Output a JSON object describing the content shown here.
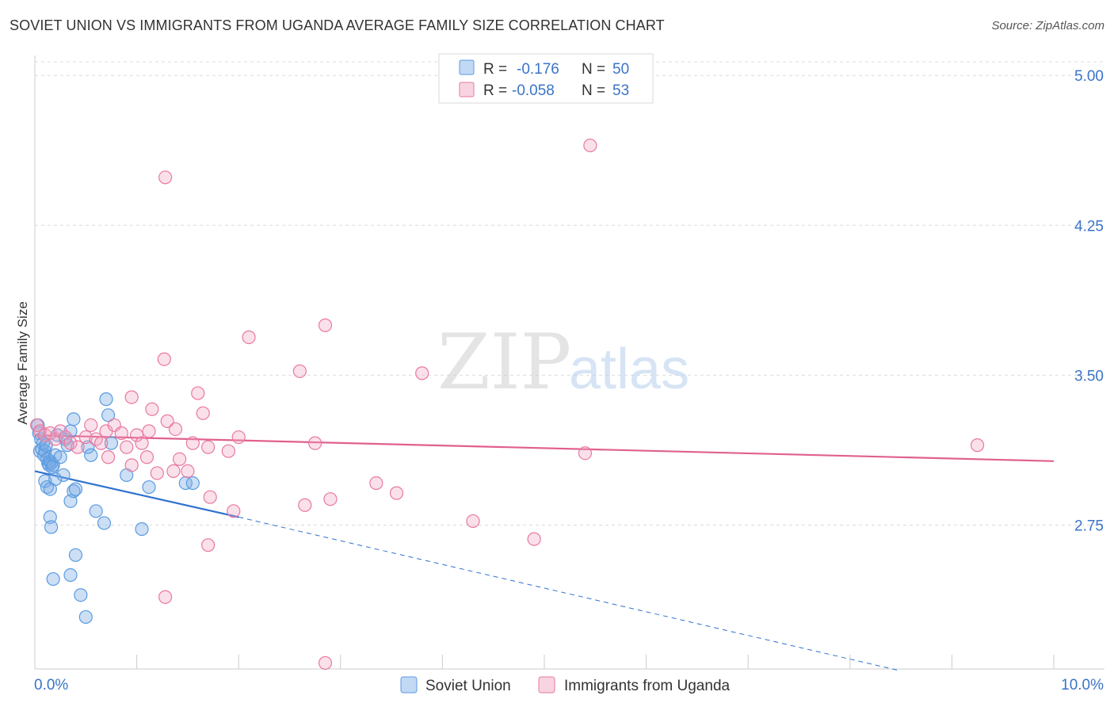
{
  "title": "SOVIET UNION VS IMMIGRANTS FROM UGANDA AVERAGE FAMILY SIZE CORRELATION CHART",
  "source": "Source: ZipAtlas.com",
  "watermark": {
    "zip": "ZIP",
    "atlas": "atlas"
  },
  "colors": {
    "blue": "#5b9be0",
    "blue_fill": "rgba(120,170,230,0.38)",
    "pink": "#e8799f",
    "pink_fill": "rgba(240,160,190,0.33)",
    "blue_line": "#2f72d0",
    "pink_line": "#e0608f",
    "tick_text": "#3a74c8",
    "grid": "#dcdcdc"
  },
  "chart_data": {
    "type": "scatter",
    "xlabel": "",
    "ylabel": "Average Family Size",
    "xlim": [
      0.0,
      10.0
    ],
    "ylim": [
      2.03,
      5.1
    ],
    "x_tick_labels": {
      "min": "0.0%",
      "max": "10.0%"
    },
    "y_ticks": [
      {
        "value": 5.0,
        "label": "5.00"
      },
      {
        "value": 4.25,
        "label": "4.25"
      },
      {
        "value": 3.5,
        "label": "3.50"
      },
      {
        "value": 2.75,
        "label": "2.75"
      }
    ],
    "grid": "horizontal dashed",
    "legend_stats": [
      {
        "r_label": "R =",
        "r_value": "-0.176",
        "n_label": "N =",
        "n_value": "50",
        "color": "blue"
      },
      {
        "r_label": "R =",
        "r_value": "-0.058",
        "n_label": "N =",
        "n_value": "53",
        "color": "pink"
      }
    ],
    "series": [
      {
        "name": "Soviet Union",
        "color": "blue",
        "trend": {
          "x": [
            0.0,
            2.0
          ],
          "y": [
            3.02,
            2.79
          ],
          "dashed_extension_to": [
            8.5,
            2.02
          ]
        },
        "points": [
          [
            0.03,
            3.25
          ],
          [
            0.04,
            3.21
          ],
          [
            0.05,
            3.12
          ],
          [
            0.06,
            3.18
          ],
          [
            0.07,
            3.13
          ],
          [
            0.08,
            3.16
          ],
          [
            0.09,
            3.1
          ],
          [
            0.1,
            3.12
          ],
          [
            0.11,
            3.15
          ],
          [
            0.12,
            3.08
          ],
          [
            0.13,
            3.06
          ],
          [
            0.14,
            3.05
          ],
          [
            0.15,
            3.07
          ],
          [
            0.16,
            3.06
          ],
          [
            0.17,
            3.04
          ],
          [
            0.18,
            3.05
          ],
          [
            0.2,
            3.1
          ],
          [
            0.22,
            3.2
          ],
          [
            0.25,
            3.09
          ],
          [
            0.28,
            3.0
          ],
          [
            0.3,
            3.18
          ],
          [
            0.32,
            3.15
          ],
          [
            0.35,
            3.22
          ],
          [
            0.38,
            3.28
          ],
          [
            0.1,
            2.97
          ],
          [
            0.12,
            2.94
          ],
          [
            0.15,
            2.93
          ],
          [
            0.2,
            2.98
          ],
          [
            0.35,
            2.87
          ],
          [
            0.38,
            2.92
          ],
          [
            0.4,
            2.93
          ],
          [
            0.52,
            3.14
          ],
          [
            0.55,
            3.1
          ],
          [
            0.6,
            2.82
          ],
          [
            0.68,
            2.76
          ],
          [
            0.7,
            3.38
          ],
          [
            0.72,
            3.3
          ],
          [
            0.75,
            3.16
          ],
          [
            0.15,
            2.79
          ],
          [
            0.16,
            2.74
          ],
          [
            0.35,
            2.5
          ],
          [
            0.4,
            2.6
          ],
          [
            0.45,
            2.4
          ],
          [
            0.5,
            2.29
          ],
          [
            0.18,
            2.48
          ],
          [
            0.9,
            3.0
          ],
          [
            1.05,
            2.73
          ],
          [
            1.12,
            2.94
          ],
          [
            1.48,
            2.96
          ],
          [
            1.55,
            2.96
          ]
        ]
      },
      {
        "name": "Immigrants from Uganda",
        "color": "pink",
        "trend": {
          "x": [
            0.0,
            10.0
          ],
          "y": [
            3.2,
            3.07
          ]
        },
        "points": [
          [
            0.02,
            3.25
          ],
          [
            0.05,
            3.22
          ],
          [
            0.1,
            3.2
          ],
          [
            0.15,
            3.21
          ],
          [
            0.2,
            3.18
          ],
          [
            0.25,
            3.22
          ],
          [
            0.3,
            3.19
          ],
          [
            0.35,
            3.16
          ],
          [
            0.42,
            3.14
          ],
          [
            0.5,
            3.19
          ],
          [
            0.55,
            3.25
          ],
          [
            0.6,
            3.18
          ],
          [
            0.65,
            3.16
          ],
          [
            0.7,
            3.22
          ],
          [
            0.72,
            3.09
          ],
          [
            0.78,
            3.25
          ],
          [
            0.85,
            3.21
          ],
          [
            0.9,
            3.14
          ],
          [
            0.95,
            3.05
          ],
          [
            1.0,
            3.2
          ],
          [
            1.05,
            3.16
          ],
          [
            1.1,
            3.09
          ],
          [
            1.12,
            3.22
          ],
          [
            1.15,
            3.33
          ],
          [
            1.2,
            3.01
          ],
          [
            1.3,
            3.27
          ],
          [
            1.38,
            3.23
          ],
          [
            1.42,
            3.08
          ],
          [
            1.5,
            3.02
          ],
          [
            1.55,
            3.16
          ],
          [
            1.6,
            3.41
          ],
          [
            1.65,
            3.31
          ],
          [
            1.7,
            3.14
          ],
          [
            1.72,
            2.89
          ],
          [
            1.9,
            3.12
          ],
          [
            1.95,
            2.82
          ],
          [
            2.0,
            3.19
          ],
          [
            2.1,
            3.69
          ],
          [
            2.6,
            3.52
          ],
          [
            2.65,
            2.85
          ],
          [
            2.75,
            3.16
          ],
          [
            2.85,
            3.75
          ],
          [
            2.9,
            2.88
          ],
          [
            3.35,
            2.96
          ],
          [
            3.55,
            2.91
          ],
          [
            3.8,
            3.51
          ],
          [
            4.3,
            2.77
          ],
          [
            4.9,
            2.68
          ],
          [
            5.4,
            3.11
          ],
          [
            9.25,
            3.15
          ],
          [
            1.28,
            4.49
          ],
          [
            5.45,
            4.65
          ],
          [
            0.95,
            3.39
          ]
        ],
        "outlier_points": [
          [
            1.28,
            2.39
          ],
          [
            2.85,
            2.06
          ],
          [
            1.27,
            3.58
          ],
          [
            1.36,
            3.02
          ],
          [
            1.7,
            2.65
          ]
        ]
      }
    ]
  },
  "bottom_legend": [
    {
      "label": "Soviet Union",
      "color": "blue"
    },
    {
      "label": "Immigrants from Uganda",
      "color": "pink"
    }
  ]
}
